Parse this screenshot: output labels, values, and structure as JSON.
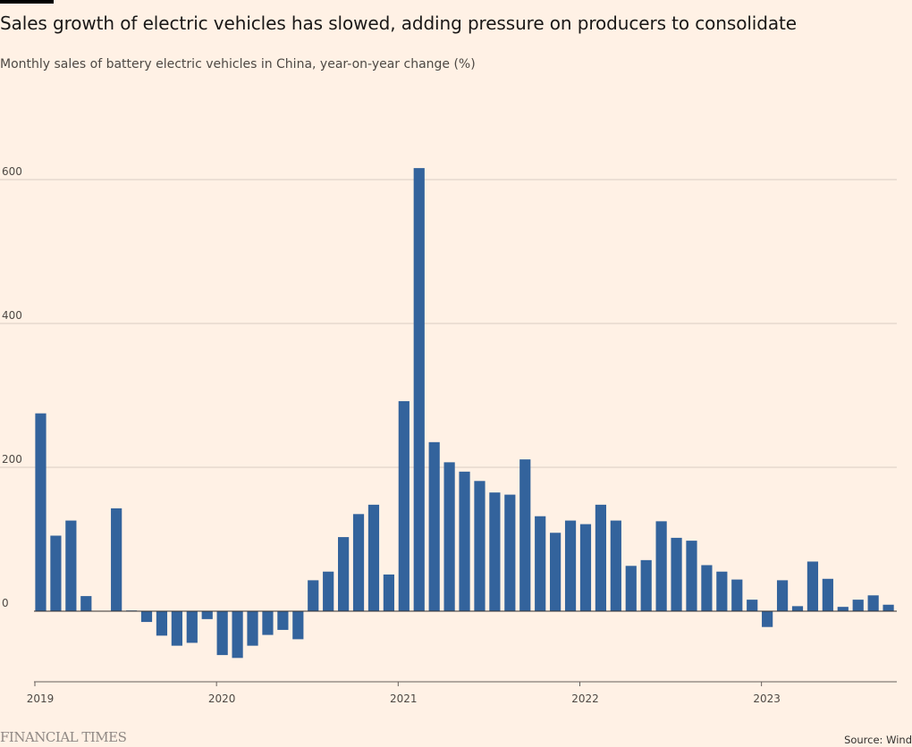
{
  "header": {
    "title": "Sales growth of electric vehicles has slowed, adding pressure on producers to consolidate",
    "subtitle": "Monthly sales of battery electric vehicles in China, year-on-year change (%)"
  },
  "footer": {
    "brand": "FINANCIAL TIMES",
    "source": "Source: Wind"
  },
  "colors": {
    "background": "#fff1e5",
    "bar": "#33639c",
    "grid": "#d9cdc3",
    "axis": "#33302e",
    "text": "#33302e"
  },
  "chart_data": {
    "type": "bar",
    "title": "Sales growth of electric vehicles has slowed, adding pressure on producers to consolidate",
    "subtitle": "Monthly sales of battery electric vehicles in China, year-on-year change (%)",
    "xlabel": "",
    "ylabel": "",
    "ylim": [
      -95,
      640
    ],
    "y_ticks": [
      0,
      200,
      400,
      600
    ],
    "grid": true,
    "legend": "none",
    "x_ticks": [
      "2019",
      "2020",
      "2021",
      "2022",
      "2023"
    ],
    "categories": [
      "2019-01",
      "2019-02",
      "2019-03",
      "2019-04",
      "2019-05",
      "2019-06",
      "2019-07",
      "2019-08",
      "2019-09",
      "2019-10",
      "2019-11",
      "2019-12",
      "2020-01",
      "2020-02",
      "2020-03",
      "2020-04",
      "2020-05",
      "2020-06",
      "2020-07",
      "2020-08",
      "2020-09",
      "2020-10",
      "2020-11",
      "2020-12",
      "2021-01",
      "2021-02",
      "2021-03",
      "2021-04",
      "2021-05",
      "2021-06",
      "2021-07",
      "2021-08",
      "2021-09",
      "2021-10",
      "2021-11",
      "2021-12",
      "2022-01",
      "2022-02",
      "2022-03",
      "2022-04",
      "2022-05",
      "2022-06",
      "2022-07",
      "2022-08",
      "2022-09",
      "2022-10",
      "2022-11",
      "2022-12",
      "2023-01",
      "2023-02",
      "2023-03",
      "2023-04",
      "2023-05",
      "2023-06",
      "2023-07",
      "2023-08",
      "2023-09"
    ],
    "values": [
      275,
      105,
      126,
      21,
      null,
      143,
      1,
      -15,
      -34,
      -48,
      -44,
      -11,
      -61,
      -65,
      -48,
      -33,
      -26,
      -39,
      43,
      55,
      103,
      135,
      148,
      51,
      292,
      616,
      235,
      207,
      194,
      181,
      165,
      162,
      211,
      132,
      109,
      126,
      121,
      148,
      126,
      63,
      71,
      125,
      102,
      98,
      64,
      55,
      44,
      16,
      -22,
      43,
      7,
      69,
      45,
      6,
      16,
      22,
      9
    ],
    "series": [
      {
        "name": "",
        "values": "see values"
      }
    ]
  }
}
